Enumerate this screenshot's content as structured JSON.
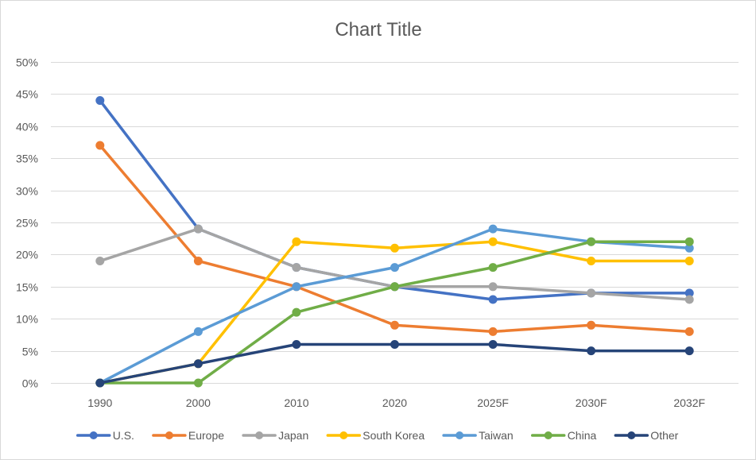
{
  "chart_data": {
    "type": "line",
    "title": "Chart Title",
    "xlabel": "",
    "ylabel": "",
    "categories": [
      "1990",
      "2000",
      "2010",
      "2020",
      "2025F",
      "2030F",
      "2032F"
    ],
    "y_ticks": [
      "0%",
      "5%",
      "10%",
      "15%",
      "20%",
      "25%",
      "30%",
      "35%",
      "40%",
      "45%",
      "50%"
    ],
    "ylim": [
      0,
      0.5
    ],
    "grid": true,
    "legend_position": "bottom",
    "series": [
      {
        "name": "U.S.",
        "color": "#4472C4",
        "values": [
          0.44,
          0.24,
          0.18,
          0.15,
          0.13,
          0.14,
          0.14
        ]
      },
      {
        "name": "Europe",
        "color": "#ED7D31",
        "values": [
          0.37,
          0.19,
          0.15,
          0.09,
          0.08,
          0.09,
          0.08
        ]
      },
      {
        "name": "Japan",
        "color": "#A5A5A5",
        "values": [
          0.19,
          0.24,
          0.18,
          0.15,
          0.15,
          0.14,
          0.13
        ]
      },
      {
        "name": "South Korea",
        "color": "#FFC000",
        "values": [
          0.0,
          0.03,
          0.22,
          0.21,
          0.22,
          0.19,
          0.19
        ]
      },
      {
        "name": "Taiwan",
        "color": "#5B9BD5",
        "values": [
          0.0,
          0.08,
          0.15,
          0.18,
          0.24,
          0.22,
          0.21
        ]
      },
      {
        "name": "China",
        "color": "#70AD47",
        "values": [
          0.0,
          0.0,
          0.11,
          0.15,
          0.18,
          0.22,
          0.22
        ]
      },
      {
        "name": "Other",
        "color": "#264478",
        "values": [
          0.0,
          0.03,
          0.06,
          0.06,
          0.06,
          0.05,
          0.05
        ]
      }
    ]
  }
}
